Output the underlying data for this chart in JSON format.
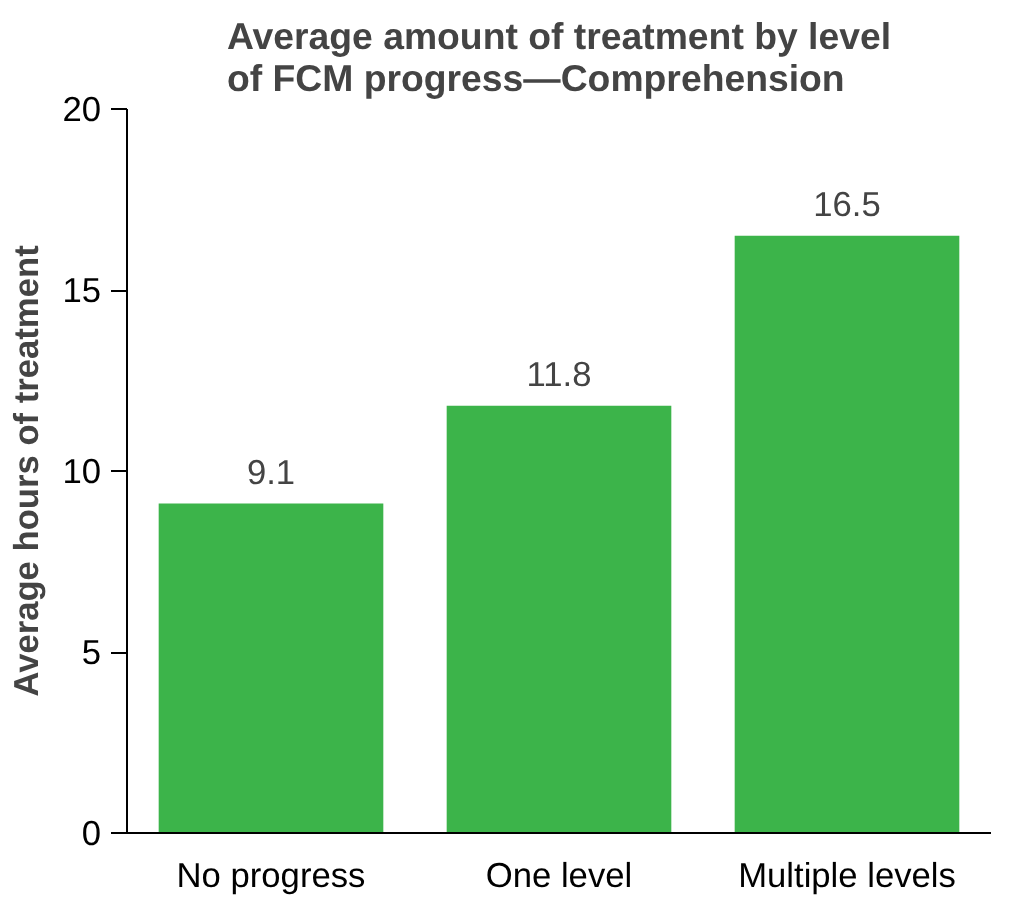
{
  "chart_data": {
    "type": "bar",
    "title": "Average amount of treatment by level\nof FCM progress—Comprehension",
    "ylabel": "Average hours of treatment",
    "categories": [
      "No progress",
      "One level",
      "Multiple levels"
    ],
    "values": [
      9.1,
      11.8,
      16.5
    ],
    "color": "#3cb44a",
    "ylim": [
      0,
      20
    ],
    "yticks": [
      0,
      5,
      10,
      15,
      20
    ],
    "grid": false,
    "data_labels": true
  }
}
